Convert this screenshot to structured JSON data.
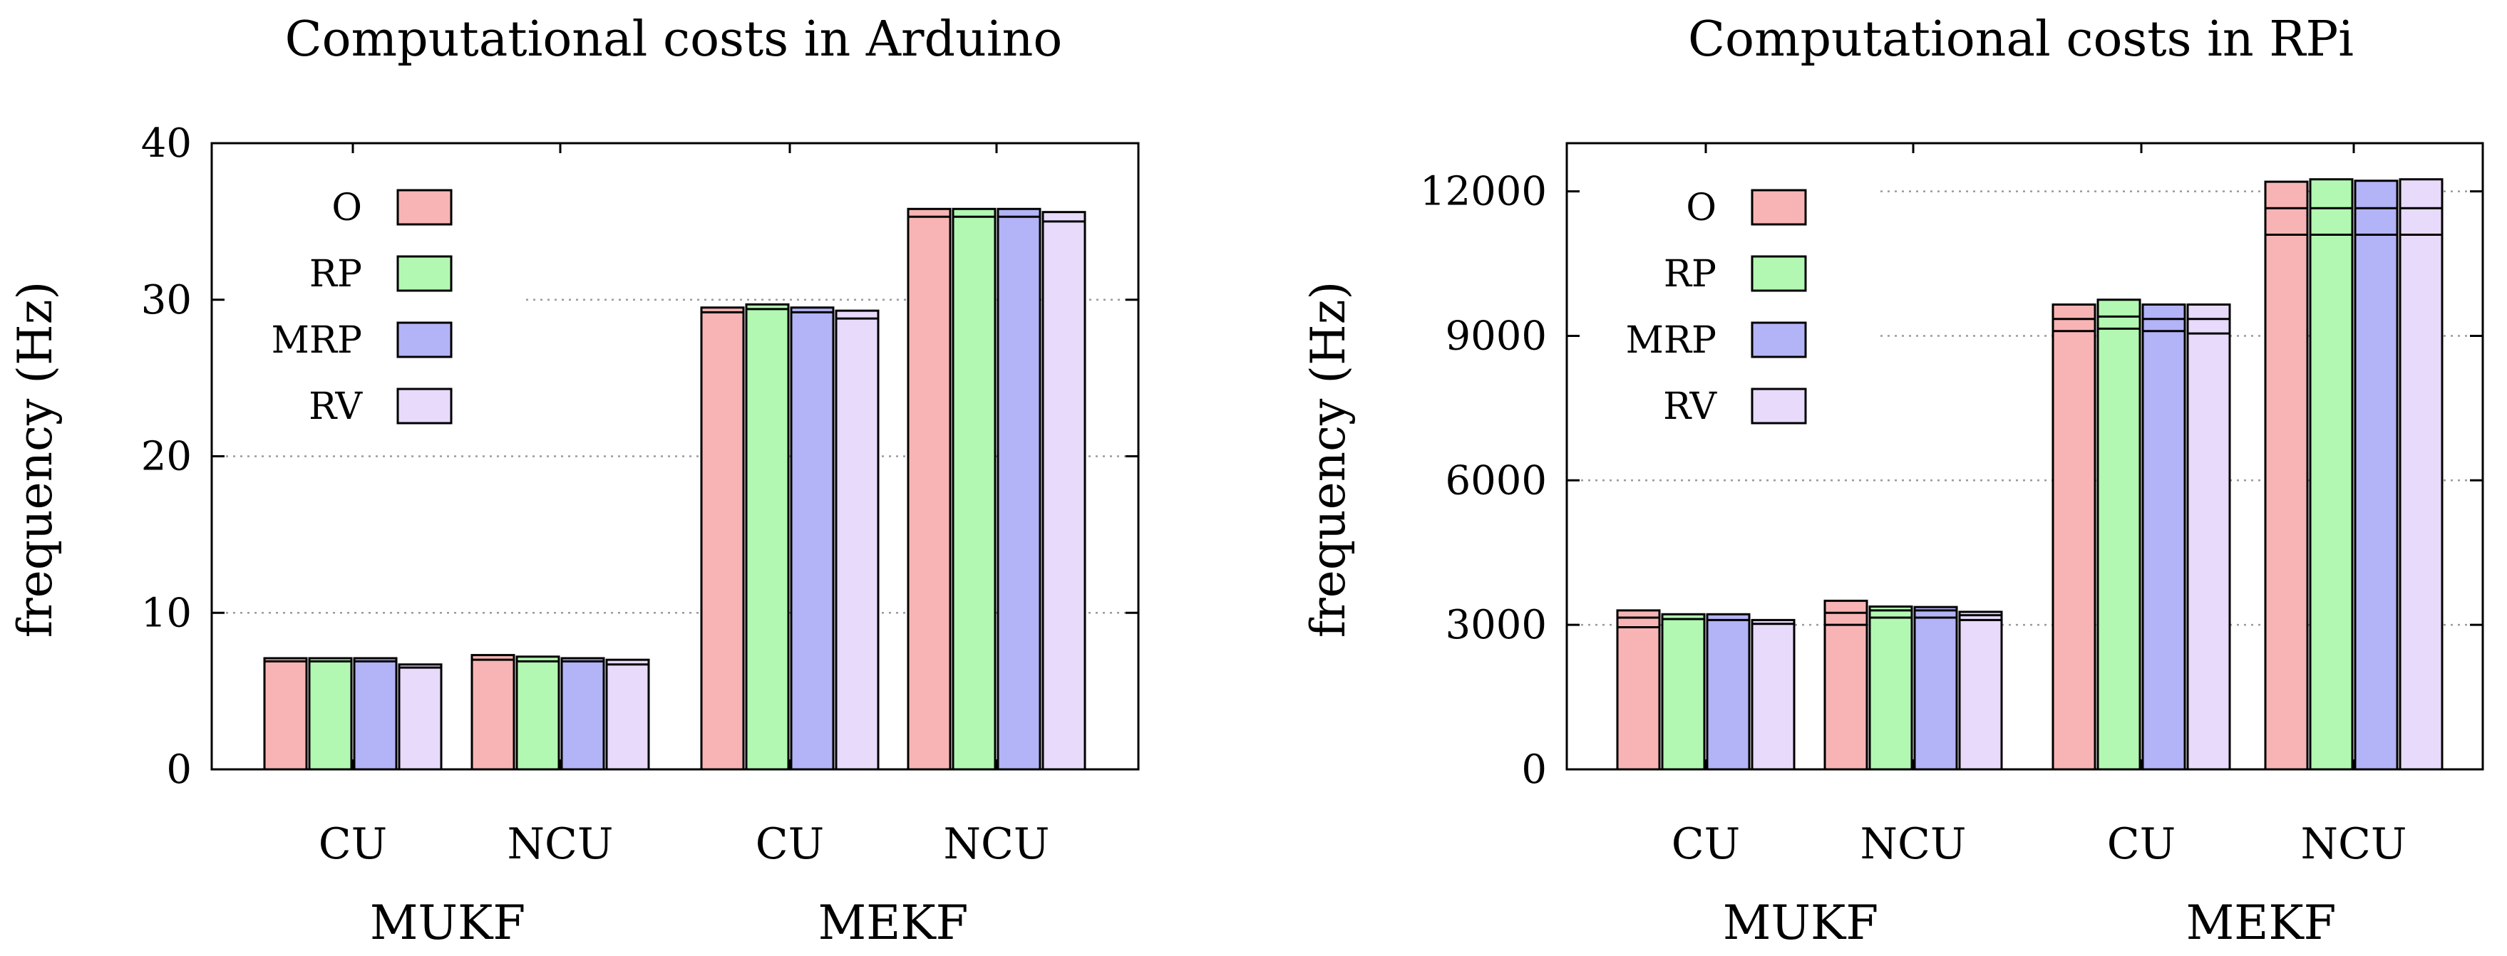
{
  "chart_data": [
    {
      "type": "bar",
      "title": "Computational costs in Arduino",
      "ylabel": "frequency (Hz)",
      "xlabel": "",
      "ylim": [
        0,
        40
      ],
      "yticks": [
        0,
        10,
        20,
        30,
        40
      ],
      "grid": "horizontal dotted",
      "legend_position": "top-left",
      "groups": [
        {
          "label": "MUKF",
          "categories": [
            "CU",
            "NCU"
          ]
        },
        {
          "label": "MEKF",
          "categories": [
            "CU",
            "NCU"
          ]
        }
      ],
      "categories": [
        "CU",
        "NCU",
        "CU",
        "NCU"
      ],
      "series": [
        {
          "name": "O",
          "values": [
            7.1,
            7.3,
            29.5,
            35.8
          ],
          "segments": [
            [
              6.9
            ],
            [
              7.0
            ],
            [
              29.2
            ],
            [
              35.3
            ]
          ]
        },
        {
          "name": "RP",
          "values": [
            7.1,
            7.2,
            29.7,
            35.8
          ],
          "segments": [
            [
              6.9
            ],
            [
              6.9
            ],
            [
              29.4
            ],
            [
              35.3
            ]
          ]
        },
        {
          "name": "MRP",
          "values": [
            7.1,
            7.1,
            29.5,
            35.8
          ],
          "segments": [
            [
              6.9
            ],
            [
              6.9
            ],
            [
              29.2
            ],
            [
              35.3
            ]
          ]
        },
        {
          "name": "RV",
          "values": [
            6.7,
            7.0,
            29.3,
            35.6
          ],
          "segments": [
            [
              6.5
            ],
            [
              6.7
            ],
            [
              28.8
            ],
            [
              35.0
            ]
          ]
        }
      ]
    },
    {
      "type": "bar",
      "title": "Computational costs in RPi",
      "ylabel": "frequency (Hz)",
      "xlabel": "",
      "ylim": [
        0,
        13000
      ],
      "yticks": [
        0,
        3000,
        6000,
        9000,
        12000
      ],
      "grid": "horizontal dotted",
      "legend_position": "top-left",
      "groups": [
        {
          "label": "MUKF",
          "categories": [
            "CU",
            "NCU"
          ]
        },
        {
          "label": "MEKF",
          "categories": [
            "CU",
            "NCU"
          ]
        }
      ],
      "categories": [
        "CU",
        "NCU",
        "CU",
        "NCU"
      ],
      "series": [
        {
          "name": "O",
          "values": [
            3300,
            3500,
            9650,
            12200
          ],
          "segments": [
            [
              2950,
              3150
            ],
            [
              3000,
              3250
            ],
            [
              9100,
              9350
            ],
            [
              11100,
              11650
            ]
          ]
        },
        {
          "name": "RP",
          "values": [
            3220,
            3380,
            9750,
            12250
          ],
          "segments": [
            [
              3120
            ],
            [
              3150,
              3300
            ],
            [
              9150,
              9400
            ],
            [
              11100,
              11650
            ]
          ]
        },
        {
          "name": "MRP",
          "values": [
            3220,
            3370,
            9650,
            12220
          ],
          "segments": [
            [
              3100
            ],
            [
              3150,
              3300
            ],
            [
              9100,
              9350
            ],
            [
              11100,
              11650
            ]
          ]
        },
        {
          "name": "RV",
          "values": [
            3100,
            3270,
            9650,
            12250
          ],
          "segments": [
            [
              3020
            ],
            [
              3100,
              3200
            ],
            [
              9050,
              9350
            ],
            [
              11100,
              11650
            ]
          ]
        }
      ]
    }
  ],
  "colors": {
    "O": "#f8b4b4",
    "RP": "#b2f8b2",
    "MRP": "#b3b3f7",
    "RV": "#e8dafb",
    "grid": "#9a9a9a",
    "axis": "#000000"
  }
}
